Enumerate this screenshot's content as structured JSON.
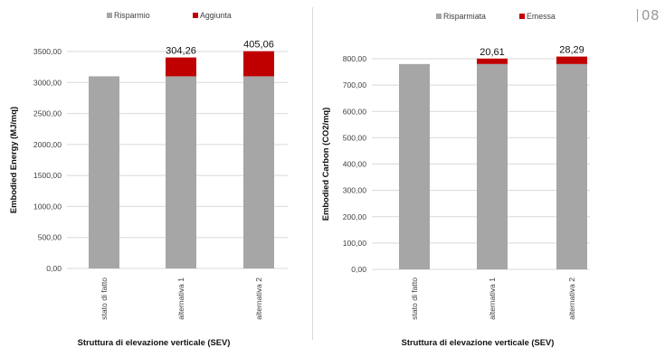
{
  "page_number": "08",
  "colors": {
    "saved": "#a6a6a6",
    "added": "#c00000",
    "grid": "#d9d9d9"
  },
  "chart_data": [
    {
      "type": "bar",
      "stacked": true,
      "title": "",
      "xlabel": "Struttura di elevazione verticale (SEV)",
      "ylabel": "Embodied Energy (MJ/mq)",
      "ylim": [
        0,
        3500
      ],
      "yticks": [
        0,
        500,
        1000,
        1500,
        2000,
        2500,
        3000,
        3500
      ],
      "ytick_labels": [
        "0,00",
        "500,00",
        "1000,00",
        "1500,00",
        "2000,00",
        "2500,00",
        "3000,00",
        "3500,00"
      ],
      "grid": true,
      "legend_position": "top",
      "categories": [
        "stato di fatto",
        "alternativa 1",
        "alternativa 2"
      ],
      "series": [
        {
          "name": "Risparmio",
          "values": [
            3100,
            3100,
            3100
          ]
        },
        {
          "name": "Aggiunta",
          "values": [
            0,
            304.26,
            405.06
          ]
        }
      ],
      "data_labels": [
        "",
        "304,26",
        "405,06"
      ]
    },
    {
      "type": "bar",
      "stacked": true,
      "title": "",
      "xlabel": "Struttura di elevazione verticale (SEV)",
      "ylabel": "Embodied Carbon (CO2/mq)",
      "ylim": [
        0,
        800
      ],
      "yticks": [
        0,
        100,
        200,
        300,
        400,
        500,
        600,
        700,
        800
      ],
      "ytick_labels": [
        "0,00",
        "100,00",
        "200,00",
        "300,00",
        "400,00",
        "500,00",
        "600,00",
        "700,00",
        "800,00"
      ],
      "grid": true,
      "legend_position": "top",
      "categories": [
        "stato di fatto",
        "alternativa 1",
        "alternativa 2"
      ],
      "series": [
        {
          "name": "Risparmiata",
          "values": [
            780,
            780,
            780
          ]
        },
        {
          "name": "Emessa",
          "values": [
            0,
            20.61,
            28.29
          ]
        }
      ],
      "data_labels": [
        "",
        "20,61",
        "28,29"
      ]
    }
  ]
}
